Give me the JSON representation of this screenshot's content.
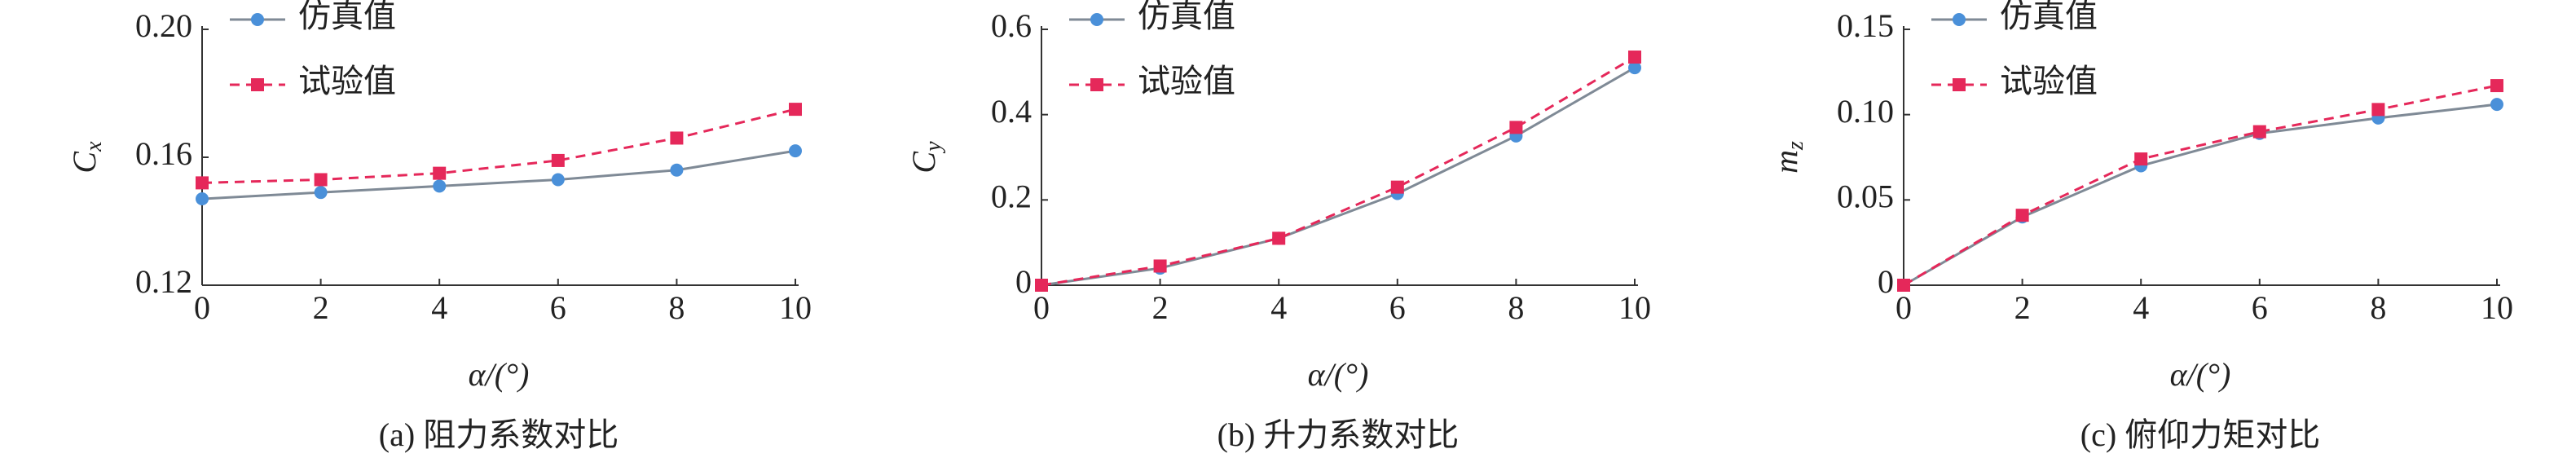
{
  "chart_data": [
    {
      "type": "line",
      "caption": "(a) 阻力系数对比",
      "x_label": "α/(°)",
      "y_label": "C",
      "y_label_sub": "x",
      "x": [
        0,
        2,
        4,
        6,
        8,
        10
      ],
      "xlim": [
        0,
        10
      ],
      "xticks": [
        0,
        2,
        4,
        6,
        8,
        10
      ],
      "ylim": [
        0.12,
        0.2
      ],
      "yticks": [
        0.12,
        0.16,
        {
          "value": 0.2,
          "label": "0.20"
        }
      ],
      "legend": "upper left",
      "series": [
        {
          "name": "仿真值",
          "color": "#4a90d9",
          "line_color": "#7f8a96",
          "marker": "circle",
          "style": "solid",
          "values": [
            0.147,
            0.149,
            0.151,
            0.153,
            0.156,
            0.162
          ]
        },
        {
          "name": "试验值",
          "color": "#e5285a",
          "line_color": "#e5285a",
          "marker": "square",
          "style": "dashed",
          "values": [
            0.152,
            0.153,
            0.155,
            0.159,
            0.166,
            0.175
          ]
        }
      ]
    },
    {
      "type": "line",
      "caption": "(b) 升力系数对比",
      "x_label": "α/(°)",
      "y_label": "C",
      "y_label_sub": "y",
      "x": [
        0,
        2,
        4,
        6,
        8,
        10
      ],
      "xlim": [
        0,
        10
      ],
      "xticks": [
        0,
        2,
        4,
        6,
        8,
        10
      ],
      "ylim": [
        0,
        0.6
      ],
      "yticks": [
        0,
        0.2,
        0.4,
        0.6
      ],
      "legend": "upper left",
      "series": [
        {
          "name": "仿真值",
          "color": "#4a90d9",
          "line_color": "#7f8a96",
          "marker": "circle",
          "style": "solid",
          "values": [
            0,
            0.04,
            0.11,
            0.215,
            0.35,
            0.51
          ]
        },
        {
          "name": "试验值",
          "color": "#e5285a",
          "line_color": "#e5285a",
          "marker": "square",
          "style": "dashed",
          "values": [
            0,
            0.045,
            0.11,
            0.23,
            0.37,
            0.535
          ]
        }
      ]
    },
    {
      "type": "line",
      "caption": "(c) 俯仰力矩对比",
      "x_label": "α/(°)",
      "y_label": "m",
      "y_label_sub": "z",
      "x": [
        0,
        2,
        4,
        6,
        8,
        10
      ],
      "xlim": [
        0,
        10
      ],
      "xticks": [
        0,
        2,
        4,
        6,
        8,
        10
      ],
      "ylim": [
        0,
        0.15
      ],
      "yticks": [
        0,
        0.05,
        {
          "value": 0.1,
          "label": "0.10"
        },
        0.15
      ],
      "legend": "upper left",
      "series": [
        {
          "name": "仿真值",
          "color": "#4a90d9",
          "line_color": "#7f8a96",
          "marker": "circle",
          "style": "solid",
          "values": [
            0,
            0.04,
            0.07,
            0.089,
            0.098,
            0.106
          ]
        },
        {
          "name": "试验值",
          "color": "#e5285a",
          "line_color": "#e5285a",
          "marker": "square",
          "style": "dashed",
          "values": [
            0,
            0.041,
            0.074,
            0.09,
            0.103,
            0.117
          ]
        }
      ]
    }
  ]
}
